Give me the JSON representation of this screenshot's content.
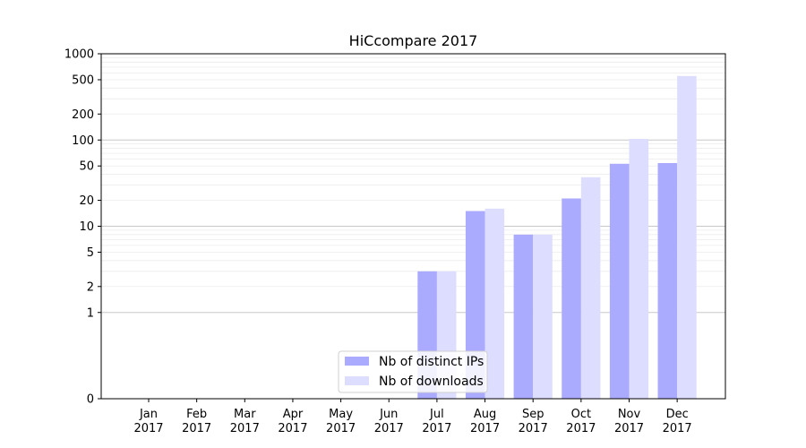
{
  "chart_data": {
    "type": "bar",
    "title": "HiCcompare 2017",
    "xlabel": "",
    "ylabel": "",
    "y_scale": "symlog",
    "ylim": [
      0,
      1000
    ],
    "y_ticks": [
      0,
      1,
      2,
      5,
      10,
      20,
      50,
      100,
      200,
      500,
      1000
    ],
    "y_tick_labels": [
      "0",
      "1",
      "2",
      "5",
      "10",
      "20",
      "50",
      "100",
      "200",
      "500",
      "1000"
    ],
    "grid": "horizontal minor and major lines",
    "legend_position": "bottom-center",
    "categories": [
      {
        "month": "Jan",
        "year": "2017"
      },
      {
        "month": "Feb",
        "year": "2017"
      },
      {
        "month": "Mar",
        "year": "2017"
      },
      {
        "month": "Apr",
        "year": "2017"
      },
      {
        "month": "May",
        "year": "2017"
      },
      {
        "month": "Jun",
        "year": "2017"
      },
      {
        "month": "Jul",
        "year": "2017"
      },
      {
        "month": "Aug",
        "year": "2017"
      },
      {
        "month": "Sep",
        "year": "2017"
      },
      {
        "month": "Oct",
        "year": "2017"
      },
      {
        "month": "Nov",
        "year": "2017"
      },
      {
        "month": "Dec",
        "year": "2017"
      }
    ],
    "series": [
      {
        "name": "Nb of distinct IPs",
        "color": "#aaaaff",
        "values": [
          0,
          0,
          0,
          0,
          0,
          0,
          3,
          15,
          8,
          21,
          53,
          54
        ]
      },
      {
        "name": "Nb of downloads",
        "color": "#ddddff",
        "values": [
          0,
          0,
          0,
          0,
          0,
          0,
          3,
          16,
          8,
          37,
          103,
          552
        ]
      }
    ]
  }
}
